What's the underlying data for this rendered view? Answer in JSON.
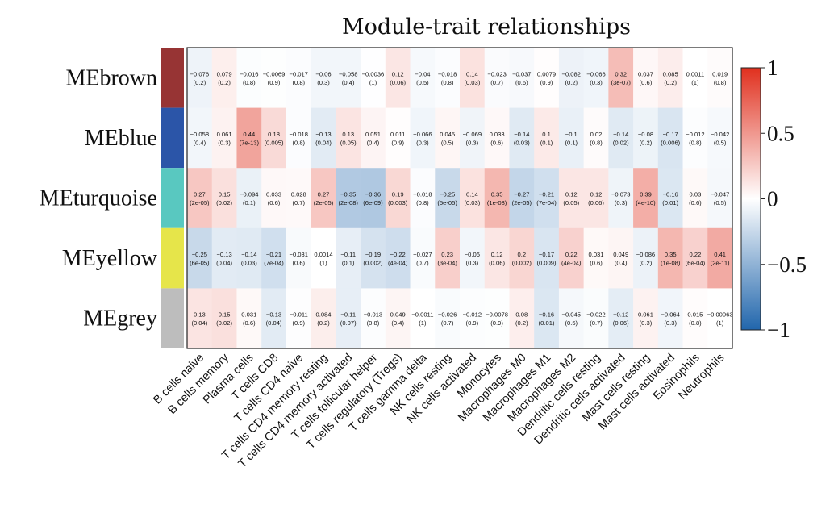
{
  "chart_data": {
    "type": "heatmap",
    "title": "Module-trait relationships",
    "rows": [
      "MEbrown",
      "MEblue",
      "MEturquoise",
      "MEyellow",
      "MEgrey"
    ],
    "row_colors": [
      "#973434",
      "#2b55a8",
      "#59c8c0",
      "#e6e54a",
      "#bdbdbd"
    ],
    "columns": [
      "B cells naive",
      "B cells memory",
      "Plasma cells",
      "T cells CD8",
      "T cells CD4 naive",
      "T cells CD4 memory resting",
      "T cells CD4 memory activated",
      "T cells follicular helper",
      "T cells regulatory (Tregs)",
      "T cells gamma delta",
      "NK cells resting",
      "NK cells activated",
      "Monocytes",
      "Macrophages M0",
      "Macrophages M1",
      "Macrophages M2",
      "Dendritic cells resting",
      "Dendritic cells activated",
      "Mast cells resting",
      "Mast cells activated",
      "Eosinophils",
      "Neutrophils"
    ],
    "values": [
      [
        -0.076,
        0.079,
        -0.016,
        -0.0069,
        -0.017,
        -0.06,
        -0.058,
        -0.0036,
        0.12,
        -0.04,
        -0.018,
        0.14,
        -0.023,
        -0.037,
        0.0079,
        -0.082,
        -0.066,
        0.32,
        0.037,
        0.085,
        0.0011,
        0.019
      ],
      [
        -0.058,
        0.061,
        0.44,
        0.18,
        -0.018,
        -0.13,
        0.13,
        0.051,
        0.011,
        -0.066,
        0.045,
        -0.069,
        0.033,
        -0.14,
        0.1,
        -0.1,
        0.02,
        -0.14,
        -0.08,
        -0.17,
        -0.012,
        -0.042
      ],
      [
        0.27,
        0.15,
        -0.094,
        0.033,
        0.028,
        0.27,
        -0.35,
        -0.36,
        0.19,
        -0.018,
        -0.25,
        0.14,
        0.35,
        -0.27,
        -0.21,
        0.12,
        0.12,
        -0.073,
        0.39,
        -0.16,
        0.03,
        -0.047
      ],
      [
        -0.25,
        -0.13,
        -0.14,
        -0.21,
        -0.031,
        0.0014,
        -0.11,
        -0.19,
        -0.22,
        -0.027,
        0.23,
        -0.06,
        0.12,
        0.2,
        -0.17,
        0.22,
        0.031,
        0.049,
        -0.086,
        0.35,
        0.22,
        0.41
      ],
      [
        0.13,
        0.15,
        0.031,
        -0.13,
        -0.011,
        0.084,
        -0.11,
        -0.013,
        0.049,
        -0.0011,
        -0.026,
        -0.012,
        -0.0078,
        0.08,
        -0.16,
        -0.045,
        -0.022,
        -0.12,
        0.061,
        -0.064,
        0.015,
        -0.00063
      ]
    ],
    "pvalues": [
      [
        "(0.2)",
        "(0.2)",
        "(0.8)",
        "(0.9)",
        "(0.8)",
        "(0.3)",
        "(0.4)",
        "(1)",
        "(0.06)",
        "(0.5)",
        "(0.8)",
        "(0.03)",
        "(0.7)",
        "(0.6)",
        "(0.9)",
        "(0.2)",
        "(0.3)",
        "(3e-07)",
        "(0.6)",
        "(0.2)",
        "(1)",
        "(0.8)"
      ],
      [
        "(0.4)",
        "(0.3)",
        "(7e-13)",
        "(0.005)",
        "(0.8)",
        "(0.04)",
        "(0.05)",
        "(0.4)",
        "(0.9)",
        "(0.3)",
        "(0.5)",
        "(0.3)",
        "(0.6)",
        "(0.03)",
        "(0.1)",
        "(0.1)",
        "(0.8)",
        "(0.02)",
        "(0.2)",
        "(0.006)",
        "(0.8)",
        "(0.5)"
      ],
      [
        "(2e-05)",
        "(0.02)",
        "(0.1)",
        "(0.6)",
        "(0.7)",
        "(2e-05)",
        "(2e-08)",
        "(6e-09)",
        "(0.003)",
        "(0.8)",
        "(5e-05)",
        "(0.03)",
        "(1e-08)",
        "(2e-05)",
        "(7e-04)",
        "(0.05)",
        "(0.06)",
        "(0.3)",
        "(4e-10)",
        "(0.01)",
        "(0.6)",
        "(0.5)"
      ],
      [
        "(6e-05)",
        "(0.04)",
        "(0.03)",
        "(7e-04)",
        "(0.6)",
        "(1)",
        "(0.1)",
        "(0.002)",
        "(4e-04)",
        "(0.7)",
        "(3e-04)",
        "(0.3)",
        "(0.06)",
        "(0.002)",
        "(0.009)",
        "(4e-04)",
        "(0.6)",
        "(0.4)",
        "(0.2)",
        "(1e-08)",
        "(6e-04)",
        "(2e-11)"
      ],
      [
        "(0.04)",
        "(0.02)",
        "(0.6)",
        "(0.04)",
        "(0.9)",
        "(0.2)",
        "(0.07)",
        "(0.8)",
        "(0.4)",
        "(1)",
        "(0.7)",
        "(0.9)",
        "(0.9)",
        "(0.2)",
        "(0.01)",
        "(0.5)",
        "(0.7)",
        "(0.06)",
        "(0.3)",
        "(0.3)",
        "(0.8)",
        "(1)"
      ]
    ],
    "color_scale": {
      "min": -1,
      "max": 1,
      "low_color": "#2166ac",
      "mid_color": "#ffffff",
      "high_color": "#e0301e",
      "ticks": [
        1,
        0.5,
        0,
        -0.5,
        -1
      ],
      "tick_labels": [
        "1",
        "0.5",
        "0",
        "−0.5",
        "−1"
      ]
    }
  }
}
